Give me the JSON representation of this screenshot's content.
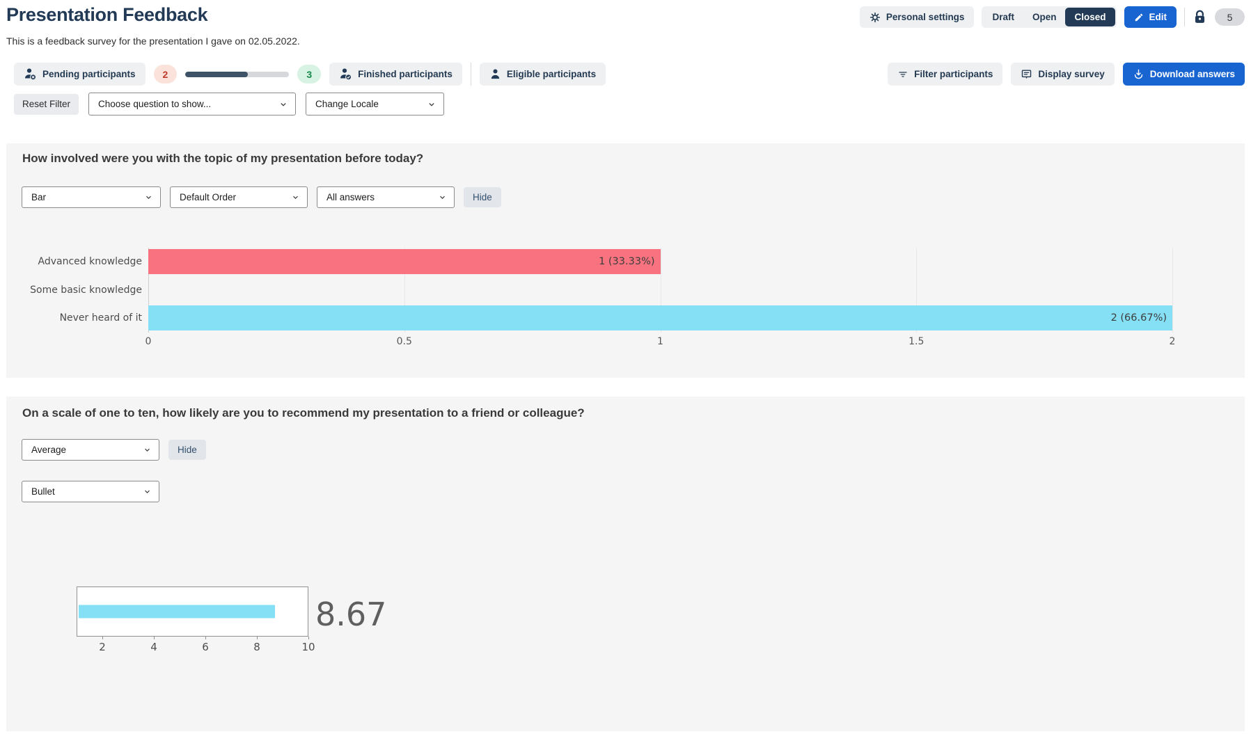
{
  "theme": {
    "navy": "#223a55",
    "accent": "#1865d2",
    "panel_bg": "#f5f5f6",
    "button_gray": "#eef0f2",
    "pill_red_bg": "#fbe3dc",
    "pill_red_text": "#bf3a2b",
    "pill_green_bg": "#d8f3e3",
    "pill_green_text": "#178a4c",
    "progress_fill": "#3e5268",
    "progress_track": "#d6d8dc"
  },
  "header": {
    "title": "Presentation Feedback",
    "subtitle": "This is a feedback survey for the presentation I gave on 02.05.2022.",
    "personal_settings_label": "Personal settings",
    "status_tabs": [
      "Draft",
      "Open",
      "Closed"
    ],
    "active_status": "Closed",
    "edit_label": "Edit",
    "locked_count": "5"
  },
  "toolbar": {
    "pending_label": "Pending participants",
    "pending_count": "2",
    "progress_percent": 60,
    "finished_count": "3",
    "finished_label": "Finished participants",
    "eligible_label": "Eligible participants",
    "filter_label": "Filter participants",
    "display_label": "Display survey",
    "download_label": "Download answers"
  },
  "filters": {
    "reset_label": "Reset Filter",
    "question_select": "Choose question to show...",
    "locale_select": "Change Locale"
  },
  "question1": {
    "title": "How involved were you with the topic of my presentation before today?",
    "chart_type": "Bar",
    "order": "Default Order",
    "answers": "All answers",
    "hide_label": "Hide"
  },
  "question2": {
    "title": "On a scale of one to ten, how likely are you to recommend my presentation to a friend or colleague?",
    "metric": "Average",
    "hide_label": "Hide",
    "chart_type": "Bullet"
  },
  "chart_data": [
    {
      "type": "bar",
      "orientation": "horizontal",
      "title": "How involved were you with the topic of my presentation before today?",
      "categories": [
        "Advanced knowledge",
        "Some basic knowledge",
        "Never heard of it"
      ],
      "values": [
        1,
        0,
        2
      ],
      "percentages": [
        33.33,
        0,
        66.67
      ],
      "value_labels": [
        "1 (33.33%)",
        "",
        "2 (66.67%)"
      ],
      "bar_colors": [
        "#f8737f",
        "#85e0f5",
        "#85e0f5"
      ],
      "xlim": [
        0,
        2
      ],
      "x_ticks": [
        0,
        0.5,
        1,
        1.5,
        2
      ],
      "x_tick_labels": [
        "0",
        "0.5",
        "1",
        "1.5",
        "2"
      ],
      "grid": true,
      "legend": "none"
    },
    {
      "type": "bullet",
      "title": "On a scale of one to ten, how likely are you to recommend my presentation to a friend or colleague?",
      "metric": "Average",
      "value": 8.67,
      "display_value": "8.67",
      "xlim": [
        1,
        10
      ],
      "axis_ticks": [
        2,
        4,
        6,
        8,
        10
      ],
      "bar_color": "#85e0f5"
    }
  ]
}
